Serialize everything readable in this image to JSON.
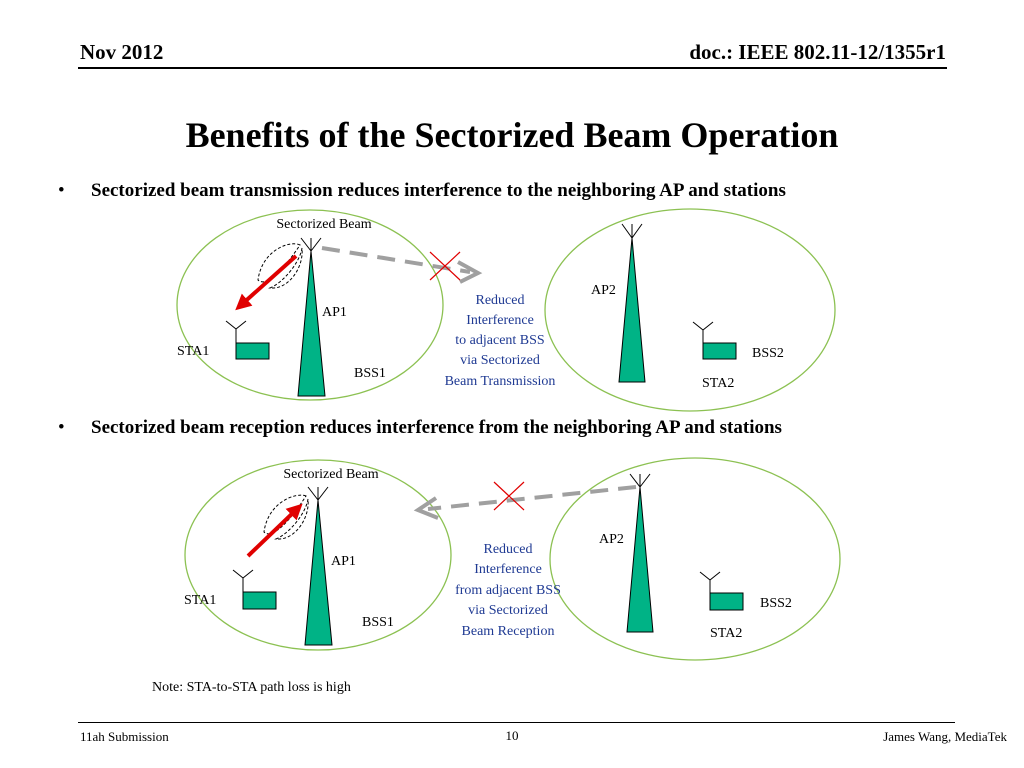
{
  "header": {
    "date": "Nov 2012",
    "doc_id": "doc.: IEEE 802.11-12/1355r1"
  },
  "title": "Benefits of the Sectorized Beam Operation",
  "bullets": [
    {
      "marker": "•",
      "text": "Sectorized beam transmission reduces interference to the neighboring AP and stations"
    },
    {
      "marker": "•",
      "text": "Sectorized beam reception reduces interference from the neighboring AP and stations"
    }
  ],
  "diagram_top": {
    "beam_label": "Sectorized Beam",
    "ap1": "AP1",
    "sta1": "STA1",
    "bss1": "BSS1",
    "ap2": "AP2",
    "sta2": "STA2",
    "bss2": "BSS2",
    "note_lines": [
      "Reduced",
      "Interference",
      "to adjacent BSS",
      "via Sectorized",
      "Beam Transmission"
    ]
  },
  "diagram_bottom": {
    "beam_label": "Sectorized Beam",
    "ap1": "AP1",
    "sta1": "STA1",
    "bss1": "BSS1",
    "ap2": "AP2",
    "sta2": "STA2",
    "bss2": "BSS2",
    "note_lines": [
      "Reduced",
      "Interference",
      "from adjacent BSS",
      "via Sectorized",
      "Beam Reception"
    ]
  },
  "note": "Note: STA-to-STA path loss is high",
  "footer": {
    "left": "11ah Submission",
    "page": "10",
    "right": "James Wang, MediaTek"
  },
  "colors": {
    "bss_outline": "#8cc152",
    "antenna_fill": "#00b386",
    "arrow_red": "#e00000",
    "interference_gray": "#a0a0a0",
    "note_text": "#1f3a93",
    "cross_red": "#e00000"
  }
}
